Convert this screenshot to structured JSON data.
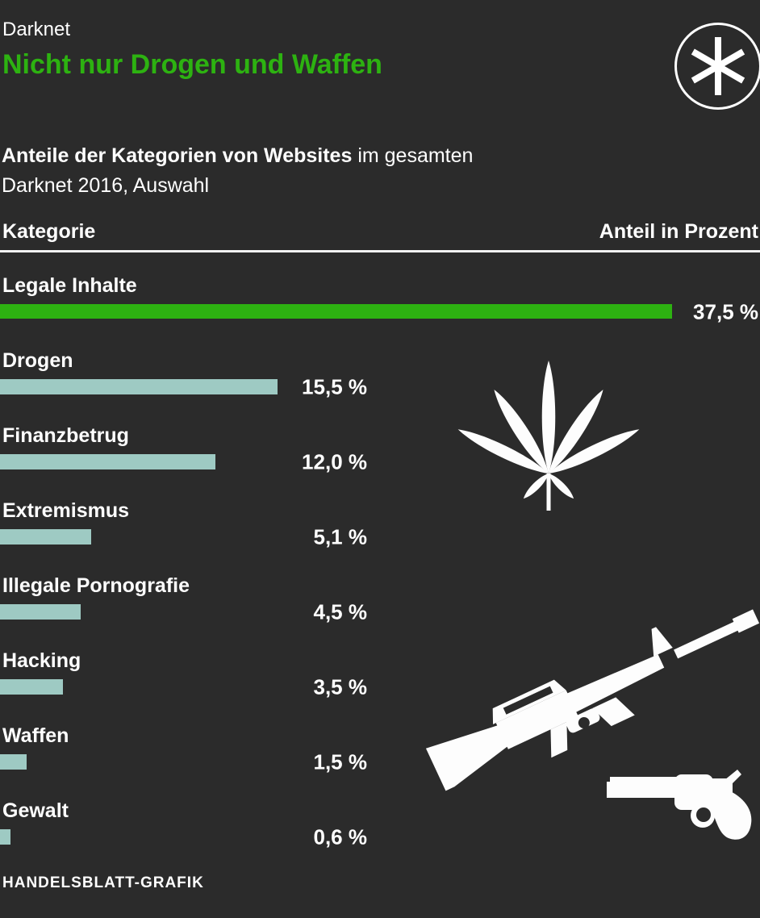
{
  "header": {
    "kicker": "Darknet",
    "title": "Nicht nur Drogen und Waffen"
  },
  "logo": {
    "icon": "asterisk-icon"
  },
  "subtitle": {
    "bold": "Anteile der Kategorien von Websites",
    "rest": " im gesamten",
    "line2": "Darknet 2016, Auswahl"
  },
  "table": {
    "col_left": "Kategorie",
    "col_right": "Anteil in Prozent"
  },
  "footer": {
    "source": "HANDELSBLATT-GRAFIK"
  },
  "icons": {
    "logo": "asterisk-icon",
    "drugs": "cannabis-leaf-icon",
    "weapons_rifle": "rifle-icon",
    "weapons_revolver": "revolver-icon"
  },
  "colors": {
    "bg": "#2b2b2b",
    "text": "#ffffff",
    "green": "#2db211",
    "teal": "#9ecac3",
    "rule": "#f2f2f2",
    "icon": "#fdfdfd"
  },
  "chart_data": {
    "type": "bar",
    "orientation": "horizontal",
    "title": "Nicht nur Drogen und Waffen",
    "kicker": "Darknet",
    "subtitle": "Anteile der Kategorien von Websites im gesamten Darknet 2016, Auswahl",
    "categories": [
      "Legale Inhalte",
      "Drogen",
      "Finanzbetrug",
      "Extremismus",
      "Illegale Pornografie",
      "Hacking",
      "Waffen",
      "Gewalt"
    ],
    "values": [
      37.5,
      15.5,
      12.0,
      5.1,
      4.5,
      3.5,
      1.5,
      0.6
    ],
    "value_labels": [
      "37,5 %",
      "15,5 %",
      "12,0 %",
      "5,1 %",
      "4,5 %",
      "3,5 %",
      "1,5 %",
      "0,6 %"
    ],
    "unit": "Prozent",
    "xlim": [
      0,
      37.5
    ],
    "grid": false,
    "legend": false,
    "highlight_category": "Legale Inhalte",
    "highlight_color": "#2db211",
    "bar_color": "#9ecac3",
    "source": "HANDELSBLATT-GRAFIK"
  }
}
